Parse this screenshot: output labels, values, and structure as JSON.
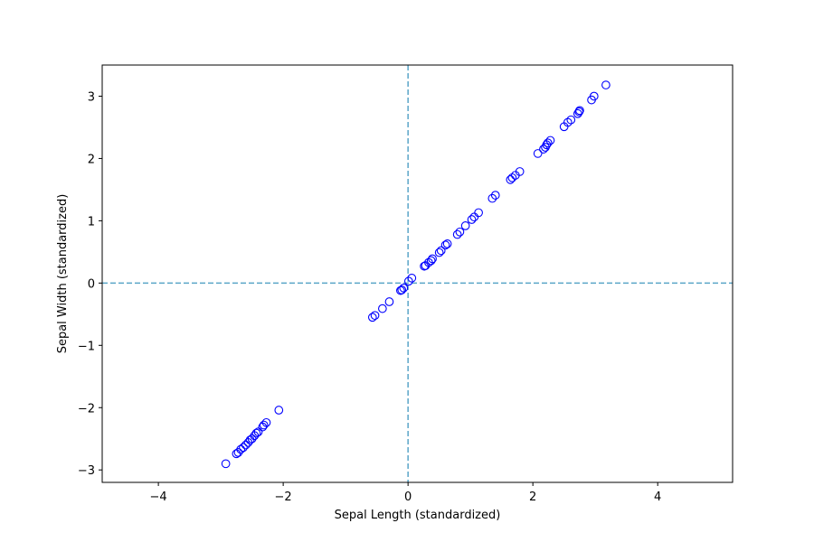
{
  "chart_data": {
    "type": "scatter",
    "title": "",
    "xlabel": "Sepal Length (standardized)",
    "ylabel": "Sepal Width (standardized)",
    "xlim": [
      -4.9,
      5.2
    ],
    "ylim": [
      -3.2,
      3.5
    ],
    "xticks": [
      -4,
      -2,
      0,
      2,
      4
    ],
    "yticks": [
      -3,
      -2,
      -1,
      0,
      1,
      2,
      3
    ],
    "xtick_labels": [
      "−4",
      "−2",
      "0",
      "2",
      "4"
    ],
    "ytick_labels": [
      "−3",
      "−2",
      "−1",
      "0",
      "1",
      "2",
      "3"
    ],
    "reference_lines": {
      "x": 0,
      "y": 0,
      "style": "dashed"
    },
    "marker_color": "#0000ff",
    "refline_color": "#5aa5c8",
    "series": [
      {
        "marker": "open-circle",
        "points": [
          [
            -2.92,
            -2.9
          ],
          [
            -2.75,
            -2.74
          ],
          [
            -2.72,
            -2.72
          ],
          [
            -2.68,
            -2.67
          ],
          [
            -2.64,
            -2.64
          ],
          [
            -2.6,
            -2.6
          ],
          [
            -2.56,
            -2.56
          ],
          [
            -2.53,
            -2.52
          ],
          [
            -2.5,
            -2.5
          ],
          [
            -2.46,
            -2.45
          ],
          [
            -2.43,
            -2.41
          ],
          [
            -2.4,
            -2.39
          ],
          [
            -2.33,
            -2.31
          ],
          [
            -2.31,
            -2.28
          ],
          [
            -2.27,
            -2.24
          ],
          [
            -2.07,
            -2.04
          ],
          [
            -0.57,
            -0.55
          ],
          [
            -0.53,
            -0.52
          ],
          [
            -0.41,
            -0.41
          ],
          [
            -0.3,
            -0.3
          ],
          [
            -0.12,
            -0.12
          ],
          [
            -0.1,
            -0.11
          ],
          [
            -0.07,
            -0.08
          ],
          [
            0.01,
            0.03
          ],
          [
            0.06,
            0.08
          ],
          [
            0.26,
            0.27
          ],
          [
            0.28,
            0.28
          ],
          [
            0.33,
            0.33
          ],
          [
            0.37,
            0.36
          ],
          [
            0.39,
            0.39
          ],
          [
            0.5,
            0.49
          ],
          [
            0.53,
            0.52
          ],
          [
            0.6,
            0.61
          ],
          [
            0.63,
            0.63
          ],
          [
            0.79,
            0.78
          ],
          [
            0.83,
            0.82
          ],
          [
            0.92,
            0.92
          ],
          [
            1.02,
            1.02
          ],
          [
            1.06,
            1.06
          ],
          [
            1.13,
            1.13
          ],
          [
            1.35,
            1.36
          ],
          [
            1.4,
            1.41
          ],
          [
            1.64,
            1.66
          ],
          [
            1.67,
            1.69
          ],
          [
            1.72,
            1.73
          ],
          [
            1.79,
            1.79
          ],
          [
            2.08,
            2.08
          ],
          [
            2.17,
            2.15
          ],
          [
            2.2,
            2.18
          ],
          [
            2.22,
            2.22
          ],
          [
            2.24,
            2.25
          ],
          [
            2.28,
            2.29
          ],
          [
            2.5,
            2.51
          ],
          [
            2.56,
            2.58
          ],
          [
            2.61,
            2.62
          ],
          [
            2.72,
            2.72
          ],
          [
            2.74,
            2.75
          ],
          [
            2.75,
            2.77
          ],
          [
            2.94,
            2.94
          ],
          [
            2.98,
            3.0
          ],
          [
            3.17,
            3.18
          ]
        ]
      }
    ]
  }
}
